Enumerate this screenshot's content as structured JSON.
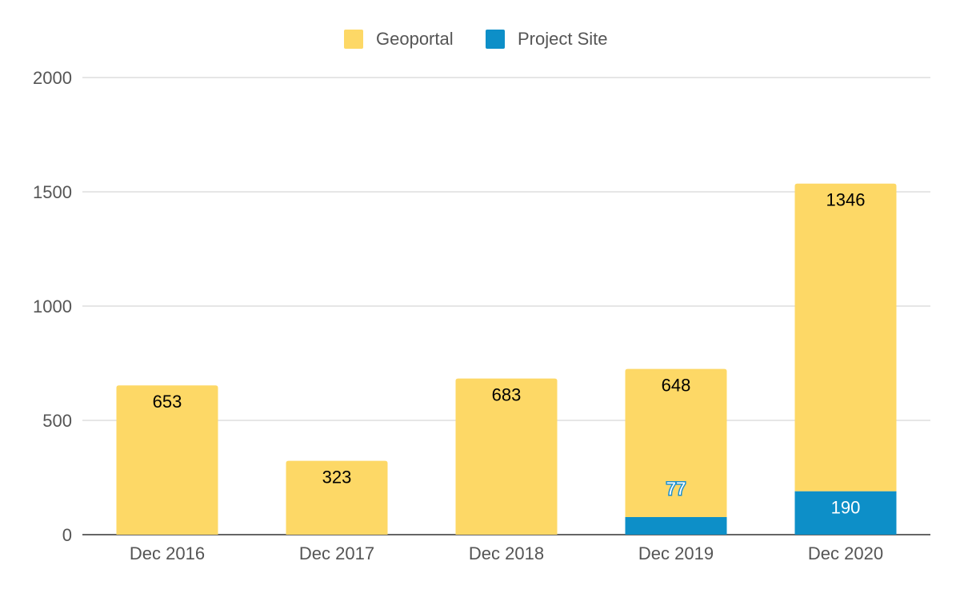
{
  "chart_data": {
    "type": "bar",
    "stacked": true,
    "categories": [
      "Dec 2016",
      "Dec 2017",
      "Dec 2018",
      "Dec 2019",
      "Dec 2020"
    ],
    "series": [
      {
        "name": "Project Site",
        "values": [
          0,
          0,
          0,
          77,
          190
        ],
        "labels": [
          "",
          "",
          "",
          "77",
          "190"
        ],
        "color": "#0d8fc8"
      },
      {
        "name": "Geoportal",
        "values": [
          653,
          323,
          683,
          648,
          1346
        ],
        "labels": [
          "653",
          "323",
          "683",
          "648",
          "1346"
        ],
        "color": "#fdd866"
      }
    ],
    "legend_order": [
      "Geoportal",
      "Project Site"
    ],
    "legend_position": "top-center",
    "ylim": [
      0,
      2000
    ],
    "yticks": [
      "0",
      "500",
      "1000",
      "1500",
      "2000"
    ],
    "grid": true,
    "title": "",
    "xlabel": "",
    "ylabel": ""
  }
}
